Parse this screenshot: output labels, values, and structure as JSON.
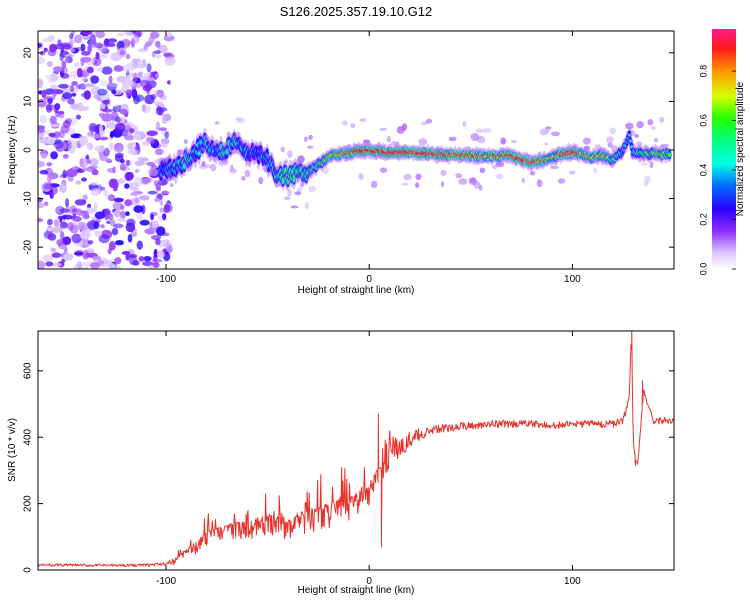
{
  "title": "S126.2025.357.19.10.G12",
  "colors": {
    "snr_line": "#e8322c",
    "axis": "#000000",
    "background": "#ffffff"
  },
  "chart_data": [
    {
      "type": "heatmap",
      "name": "spectrogram",
      "xlabel": "Height of straight line (km)",
      "ylabel": "Frequency (Hz)",
      "xlim": [
        -163,
        150
      ],
      "ylim": [
        -24.5,
        24.5
      ],
      "x_ticks": [
        -100,
        0,
        100
      ],
      "x_tick_labels": [
        "-100",
        "0",
        "100"
      ],
      "y_ticks": [
        -20,
        -10,
        0,
        10,
        20
      ],
      "y_tick_labels": [
        "-20",
        "-10",
        "0",
        "10",
        "20"
      ],
      "colorbar": {
        "label": "Normalized spectral amplitude",
        "range": [
          0.0,
          0.97
        ],
        "ticks": [
          0.0,
          0.2,
          0.4,
          0.6,
          0.8
        ],
        "tick_labels": [
          "0.0",
          "0.2",
          "0.4",
          "0.6",
          "0.8"
        ]
      },
      "noise_region": {
        "x_range": [
          -163,
          -102
        ],
        "y_range": [
          -24.5,
          24.5
        ]
      },
      "ridge": {
        "x": [
          -103,
          -95,
          -90,
          -85,
          -80,
          -75,
          -70,
          -65,
          -60,
          -55,
          -50,
          -45,
          -40,
          -35,
          -30,
          -25,
          -20,
          -15,
          -10,
          -5,
          0,
          10,
          20,
          30,
          40,
          50,
          60,
          70,
          75,
          80,
          85,
          90,
          95,
          100,
          105,
          110,
          115,
          120,
          125,
          128,
          130,
          135,
          140,
          145,
          148
        ],
        "y": [
          -4.5,
          -3.5,
          -2.0,
          0.0,
          1.5,
          -1.0,
          0.5,
          2.0,
          -1.5,
          -0.5,
          -2.0,
          -5.0,
          -5.5,
          -4.5,
          -4.5,
          -3.0,
          -1.5,
          -0.8,
          -0.5,
          -0.3,
          -0.2,
          -0.5,
          -0.5,
          -0.8,
          -1.0,
          -1.2,
          -1.3,
          -1.2,
          -2.0,
          -2.5,
          -2.2,
          -1.5,
          -0.8,
          -0.5,
          -1.0,
          -1.5,
          -1.2,
          -2.0,
          0.0,
          3.0,
          -0.5,
          -0.8,
          -0.8,
          -0.8,
          -0.8
        ],
        "amplitude": [
          0.35,
          0.4,
          0.45,
          0.35,
          0.5,
          0.4,
          0.55,
          0.45,
          0.4,
          0.3,
          0.45,
          0.5,
          0.55,
          0.6,
          0.55,
          0.6,
          0.7,
          0.75,
          0.85,
          0.9,
          0.9,
          0.95,
          0.95,
          0.9,
          0.85,
          0.85,
          0.8,
          0.85,
          0.9,
          0.85,
          0.8,
          0.75,
          0.85,
          0.9,
          0.8,
          0.75,
          0.8,
          0.6,
          0.45,
          0.5,
          0.5,
          0.6,
          0.7,
          0.7,
          0.65
        ]
      }
    },
    {
      "type": "line",
      "name": "snr",
      "xlabel": "Height of straight line (km)",
      "ylabel": "SNR (10 * v/v)",
      "xlim": [
        -163,
        150
      ],
      "ylim": [
        0,
        720
      ],
      "x_ticks": [
        -100,
        0,
        100
      ],
      "x_tick_labels": [
        "-100",
        "0",
        "100"
      ],
      "y_ticks": [
        0,
        200,
        400,
        600
      ],
      "y_tick_labels": [
        "0",
        "200",
        "400",
        "600"
      ],
      "series": [
        {
          "name": "SNR",
          "x": [
            -163,
            -150,
            -140,
            -130,
            -120,
            -110,
            -100,
            -95,
            -90,
            -85,
            -80,
            -75,
            -70,
            -65,
            -60,
            -55,
            -50,
            -45,
            -40,
            -35,
            -30,
            -25,
            -20,
            -15,
            -10,
            -5,
            0,
            2,
            5,
            8,
            10,
            15,
            20,
            25,
            30,
            40,
            50,
            60,
            70,
            80,
            90,
            100,
            110,
            120,
            125,
            128,
            129,
            130,
            132,
            135,
            140,
            150
          ],
          "y": [
            15,
            15,
            14,
            14,
            14,
            15,
            18,
            30,
            60,
            80,
            110,
            120,
            130,
            140,
            135,
            150,
            160,
            150,
            140,
            160,
            170,
            180,
            190,
            200,
            210,
            230,
            250,
            280,
            300,
            320,
            350,
            370,
            390,
            410,
            420,
            430,
            435,
            440,
            440,
            440,
            435,
            440,
            440,
            440,
            450,
            520,
            720,
            380,
            310,
            540,
            450,
            450
          ]
        }
      ],
      "spikes": [
        {
          "x": 4.5,
          "y": 470
        },
        {
          "x": 6.0,
          "y": 70
        },
        {
          "x": 129.2,
          "y": 730
        },
        {
          "x": 131.0,
          "y": 315
        },
        {
          "x": 134.5,
          "y": 570
        }
      ],
      "noise_amplitude": [
        {
          "x": -163,
          "amp": 8
        },
        {
          "x": -100,
          "amp": 8
        },
        {
          "x": -90,
          "amp": 50
        },
        {
          "x": -50,
          "amp": 100
        },
        {
          "x": -20,
          "amp": 120
        },
        {
          "x": 0,
          "amp": 110
        },
        {
          "x": 20,
          "amp": 50
        },
        {
          "x": 30,
          "amp": 25
        },
        {
          "x": 150,
          "amp": 20
        }
      ]
    }
  ]
}
